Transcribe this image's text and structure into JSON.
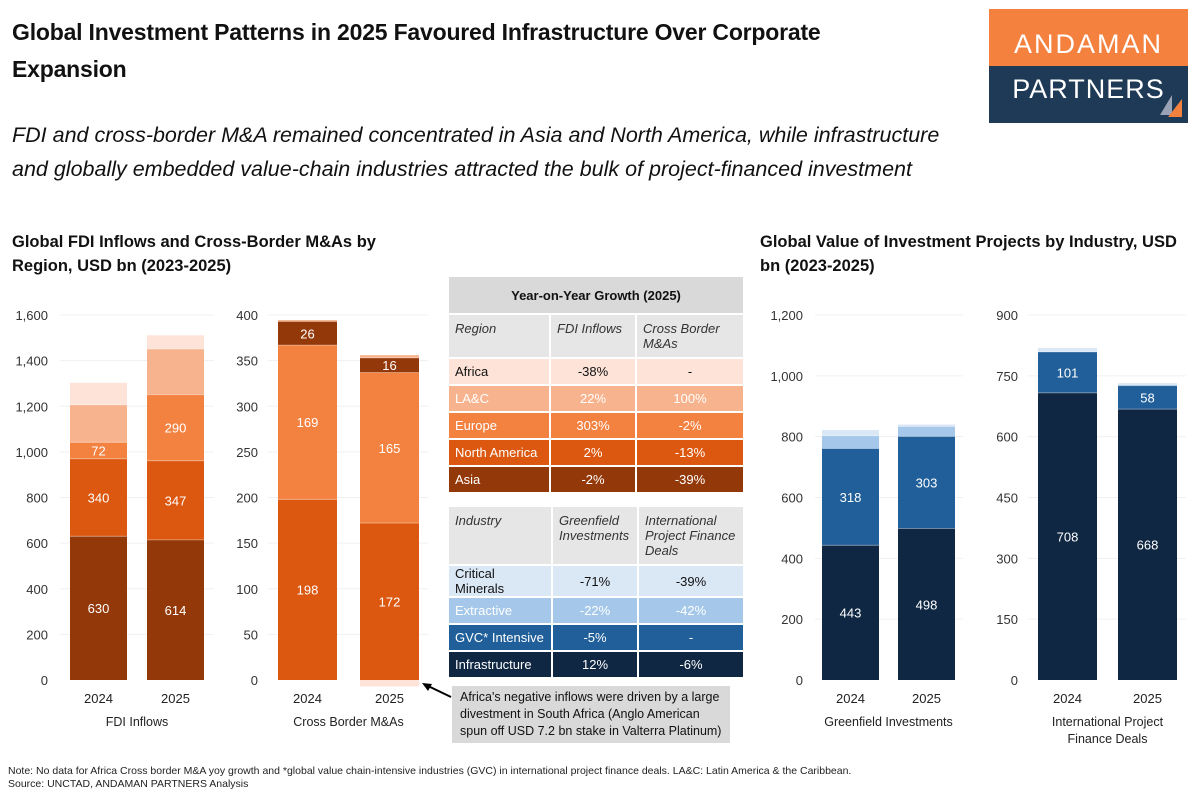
{
  "title": "Global Investment Patterns in 2025 Favoured Infrastructure Over Corporate Expansion",
  "subtitle": "FDI and cross-border M&A remained concentrated in Asia and North America, while infrastructure and globally embedded value-chain industries attracted the bulk of project-financed investment",
  "logo": {
    "line1": "ANDAMAN",
    "line2": "PARTNERS"
  },
  "left_section_title": "Global FDI Inflows and Cross-Border M&As by Region, USD bn (2023-2025)",
  "right_section_title": "Global Value of Investment Projects by Industry, USD bn (2023-2025)",
  "colors": {
    "Africa": "#fde3d8",
    "LA&C": "#f7b38d",
    "Europe": "#f38241",
    "North America": "#dc570f",
    "Asia": "#933809",
    "Critical Minerals": "#dae7f5",
    "Extractive": "#a5c8ea",
    "GVC* Intensive": "#215f9a",
    "Infrastructure": "#0f2742"
  },
  "chart_data": [
    {
      "type": "bar",
      "stacked": true,
      "xlabel": "FDI Inflows",
      "ylabel": "",
      "categories": [
        "2024",
        "2025"
      ],
      "ylim": [
        0,
        1600
      ],
      "yticks": [
        "0",
        "200",
        "400",
        "600",
        "800",
        "1,000",
        "1,200",
        "1,400",
        "1,600"
      ],
      "grid": true,
      "series": [
        {
          "name": "Asia",
          "values": [
            630,
            614
          ],
          "labeled": true
        },
        {
          "name": "North America",
          "values": [
            340,
            347
          ],
          "labeled": true
        },
        {
          "name": "Europe",
          "values": [
            72,
            290
          ],
          "labeled": true
        },
        {
          "name": "LA&C",
          "values": [
            164,
            200
          ],
          "labeled": false
        },
        {
          "name": "Africa",
          "values": [
            97,
            60
          ],
          "labeled": false
        }
      ]
    },
    {
      "type": "bar",
      "stacked": true,
      "xlabel": "Cross Border M&As",
      "ylabel": "",
      "categories": [
        "2024",
        "2025"
      ],
      "ylim": [
        0,
        400
      ],
      "yticks": [
        "0",
        "50",
        "100",
        "150",
        "200",
        "250",
        "300",
        "350",
        "400"
      ],
      "grid": true,
      "series": [
        {
          "name": "North America",
          "values": [
            198,
            172
          ],
          "labeled": true
        },
        {
          "name": "Europe",
          "values": [
            169,
            165
          ],
          "labeled": true
        },
        {
          "name": "Asia",
          "values": [
            26,
            16
          ],
          "labeled": true
        },
        {
          "name": "LA&C",
          "values": [
            1.5,
            3
          ],
          "labeled": false
        },
        {
          "name": "Africa",
          "values": [
            0,
            -7
          ],
          "labeled": false
        }
      ]
    },
    {
      "type": "bar",
      "stacked": true,
      "xlabel": "Greenfield Investments",
      "ylabel": "",
      "categories": [
        "2024",
        "2025"
      ],
      "ylim": [
        0,
        1200
      ],
      "yticks": [
        "0",
        "200",
        "400",
        "600",
        "800",
        "1,000",
        "1,200"
      ],
      "grid": true,
      "series": [
        {
          "name": "Infrastructure",
          "values": [
            443,
            498
          ],
          "labeled": true
        },
        {
          "name": "GVC* Intensive",
          "values": [
            318,
            303
          ],
          "labeled": true
        },
        {
          "name": "Extractive",
          "values": [
            42,
            33
          ],
          "labeled": false
        },
        {
          "name": "Critical Minerals",
          "values": [
            19,
            6
          ],
          "labeled": false
        }
      ]
    },
    {
      "type": "bar",
      "stacked": true,
      "xlabel": "International Project Finance Deals",
      "ylabel": "",
      "categories": [
        "2024",
        "2025"
      ],
      "ylim": [
        0,
        900
      ],
      "yticks": [
        "0",
        "150",
        "300",
        "450",
        "600",
        "750",
        "900"
      ],
      "grid": true,
      "series": [
        {
          "name": "Infrastructure",
          "values": [
            708,
            668
          ],
          "labeled": true,
          "color": "#0f2742"
        },
        {
          "name": "Extractive",
          "values": [
            101,
            58
          ],
          "labeled": true,
          "color": "#215f9a"
        },
        {
          "name": "Critical Minerals",
          "values": [
            10,
            6
          ],
          "labeled": false,
          "color": "#dae7f5"
        }
      ]
    }
  ],
  "table_regions": {
    "title": "Year-on-Year Growth (2025)",
    "headers": [
      "Region",
      "FDI Inflows",
      "Cross Border M&As"
    ],
    "rows": [
      {
        "name": "Africa",
        "fdi": "-38%",
        "ma": "-"
      },
      {
        "name": "LA&C",
        "fdi": "22%",
        "ma": "100%"
      },
      {
        "name": "Europe",
        "fdi": "303%",
        "ma": "-2%"
      },
      {
        "name": "North America",
        "fdi": "2%",
        "ma": "-13%"
      },
      {
        "name": "Asia",
        "fdi": "-2%",
        "ma": "-39%"
      }
    ]
  },
  "table_industries": {
    "headers": [
      "Industry",
      "Greenfield Investments",
      "International Project Finance Deals"
    ],
    "rows": [
      {
        "name": "Critical Minerals",
        "gf": "-71%",
        "pf": "-39%"
      },
      {
        "name": "Extractive",
        "gf": "-22%",
        "pf": "-42%"
      },
      {
        "name": "GVC* Intensive",
        "gf": "-5%",
        "pf": "-"
      },
      {
        "name": "Infrastructure",
        "gf": "12%",
        "pf": "-6%"
      }
    ]
  },
  "annotation": "Africa's negative inflows were driven by a large divestment in South Africa (Anglo American spun off USD 7.2 bn stake in Valterra Platinum)",
  "footnote": {
    "note": "Note: No data for Africa Cross border M&A yoy growth and *global value chain-intensive industries (GVC) in international project finance deals. LA&C: Latin America & the Caribbean.",
    "source": "Source: UNCTAD, ANDAMAN PARTNERS Analysis"
  }
}
